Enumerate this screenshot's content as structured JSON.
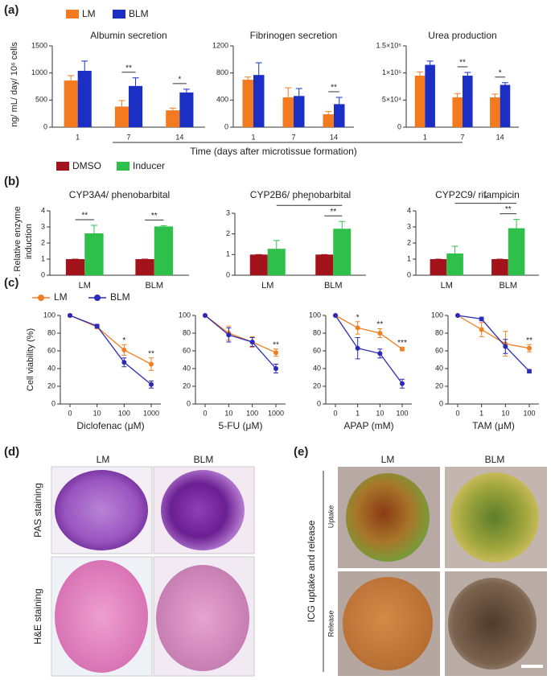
{
  "panels": {
    "a": {
      "label": "(a)",
      "ylabel": "ng/ mL/ day/ 10⁶ cells",
      "xlabel": "Time (days after microtissue formation)"
    },
    "b": {
      "label": "(b)",
      "ylabel": [
        ". Relative enzyme",
        "induction"
      ]
    },
    "c": {
      "label": "(c)",
      "ylabel": "Cell viability (%)"
    },
    "d": {
      "label": "(d)",
      "columns": [
        "LM",
        "BLM"
      ],
      "rows": [
        "PAS staining",
        "H&E staining"
      ]
    },
    "e": {
      "label": "(e)",
      "columns": [
        "LM",
        "BLM"
      ],
      "title": "ICG uptake and release",
      "rows": [
        "Uptake",
        "Release"
      ]
    }
  },
  "chart_data": [
    {
      "type": "bar",
      "title": "Albumin secretion",
      "categories": [
        "1",
        "7",
        "14"
      ],
      "series": [
        {
          "name": "LM",
          "color": "#f47a20",
          "values": [
            860,
            380,
            310
          ],
          "errors": [
            90,
            110,
            40
          ]
        },
        {
          "name": "BLM",
          "color": "#1c2fc4",
          "values": [
            1040,
            760,
            640
          ],
          "errors": [
            180,
            150,
            60
          ]
        }
      ],
      "ylim": [
        0,
        1500
      ],
      "yticks": [
        0,
        500,
        1000,
        1500
      ],
      "significance": [
        null,
        "**",
        "*"
      ]
    },
    {
      "type": "bar",
      "title": "Fibrinogen secretion",
      "categories": [
        "1",
        "7",
        "14"
      ],
      "series": [
        {
          "color": "#f47a20",
          "values": [
            700,
            440,
            190
          ],
          "errors": [
            40,
            140,
            40
          ]
        },
        {
          "color": "#1c2fc4",
          "values": [
            770,
            460,
            340
          ],
          "errors": [
            180,
            110,
            100
          ]
        }
      ],
      "ylim": [
        0,
        1200
      ],
      "yticks": [
        0,
        400,
        800,
        1200
      ],
      "significance": [
        null,
        null,
        "**"
      ]
    },
    {
      "type": "bar",
      "title": "Urea production",
      "categories": [
        "1",
        "7",
        "14"
      ],
      "series": [
        {
          "color": "#f47a20",
          "values": [
            95000,
            55000,
            55000
          ],
          "errors": [
            7000,
            7000,
            6000
          ]
        },
        {
          "color": "#1c2fc4",
          "values": [
            115000,
            95000,
            78000
          ],
          "errors": [
            7000,
            6000,
            4000
          ]
        }
      ],
      "ylim": [
        0,
        150000
      ],
      "yticks": [
        0,
        {
          "value": 50000,
          "label": "5×10⁴"
        },
        {
          "value": 100000,
          "label": "1×10⁵"
        },
        {
          "value": 150000,
          "label": "1.5×10⁵"
        }
      ],
      "significance": [
        null,
        "**",
        "*"
      ]
    },
    {
      "type": "bar",
      "title": "CYP3A4/ phenobarbital",
      "categories": [
        "LM",
        "BLM"
      ],
      "series": [
        {
          "name": "DMSO",
          "color": "#a3131b",
          "values": [
            1,
            1
          ],
          "errors": [
            0,
            0
          ]
        },
        {
          "name": "Inducer",
          "color": "#2ec04b",
          "values": [
            2.6,
            3.03
          ],
          "errors": [
            0.5,
            0.05
          ]
        }
      ],
      "ylim": [
        0,
        4
      ],
      "yticks": [
        0,
        1,
        2,
        3,
        4
      ],
      "significance": [
        "**",
        "**"
      ]
    },
    {
      "type": "bar",
      "title": "CYP2B6/ phenobarbital",
      "categories": [
        "LM",
        "BLM"
      ],
      "series": [
        {
          "color": "#a3131b",
          "values": [
            1,
            1
          ],
          "errors": [
            0,
            0
          ]
        },
        {
          "color": "#2ec04b",
          "values": [
            1.28,
            2.25
          ],
          "errors": [
            0.4,
            0.35
          ]
        }
      ],
      "ylim": [
        0,
        3
      ],
      "yticks": [
        0,
        1,
        2,
        3
      ],
      "significance": [
        null,
        "**"
      ],
      "between_label": "*"
    },
    {
      "type": "bar",
      "title": "CYP2C9/ rifampicin",
      "categories": [
        "LM",
        "BLM"
      ],
      "series": [
        {
          "color": "#a3131b",
          "values": [
            1,
            1
          ],
          "errors": [
            0,
            0
          ]
        },
        {
          "color": "#2ec04b",
          "values": [
            1.35,
            2.92
          ],
          "errors": [
            0.45,
            0.55
          ]
        }
      ],
      "ylim": [
        0,
        4
      ],
      "yticks": [
        0,
        1,
        2,
        3,
        4
      ],
      "significance": [
        null,
        "**"
      ],
      "between_label": "*"
    },
    {
      "type": "line",
      "xlabel": "Diclofenac (μM)",
      "categories": [
        "0",
        "10",
        "100",
        "1000"
      ],
      "series": [
        {
          "name": "LM",
          "color": "#f07f22",
          "values": [
            100,
            87,
            61,
            45
          ],
          "errors": [
            1,
            2,
            6,
            7
          ]
        },
        {
          "name": "BLM",
          "color": "#2a2ab8",
          "values": [
            100,
            88,
            47,
            22
          ],
          "errors": [
            1,
            2,
            5,
            4
          ]
        }
      ],
      "ylim": [
        0,
        100
      ],
      "yticks": [
        0,
        20,
        40,
        60,
        80,
        100
      ],
      "significance": [
        null,
        null,
        "*",
        "**"
      ]
    },
    {
      "type": "line",
      "xlabel": "5-FU (μM)",
      "categories": [
        "0",
        "10",
        "100",
        "1000"
      ],
      "series": [
        {
          "color": "#f07f22",
          "values": [
            100,
            80,
            70,
            58
          ],
          "errors": [
            0,
            8,
            6,
            4
          ]
        },
        {
          "color": "#2a2ab8",
          "values": [
            100,
            78,
            70,
            40
          ],
          "errors": [
            0,
            8,
            5,
            5
          ]
        }
      ],
      "ylim": [
        0,
        100
      ],
      "yticks": [
        0,
        20,
        40,
        60,
        80,
        100
      ],
      "significance": [
        null,
        null,
        null,
        "**"
      ]
    },
    {
      "type": "line",
      "xlabel": "APAP (mM)",
      "categories": [
        "0",
        "1",
        "10",
        "100"
      ],
      "series": [
        {
          "color": "#f07f22",
          "values": [
            100,
            86,
            80,
            62
          ],
          "errors": [
            0,
            7,
            5,
            2
          ]
        },
        {
          "color": "#2a2ab8",
          "values": [
            100,
            63,
            57,
            23
          ],
          "errors": [
            0,
            12,
            5,
            5
          ]
        }
      ],
      "ylim": [
        0,
        100
      ],
      "yticks": [
        0,
        20,
        40,
        60,
        80,
        100
      ],
      "significance": [
        null,
        "*",
        "**",
        "***"
      ]
    },
    {
      "type": "line",
      "xlabel": "TAM (μM)",
      "categories": [
        "0",
        "1",
        "10",
        "100"
      ],
      "series": [
        {
          "color": "#f07f22",
          "values": [
            100,
            84,
            68,
            63
          ],
          "errors": [
            0,
            8,
            14,
            4
          ]
        },
        {
          "color": "#2a2ab8",
          "values": [
            100,
            96,
            65,
            37
          ],
          "errors": [
            0,
            2,
            8,
            2
          ]
        }
      ],
      "ylim": [
        0,
        100
      ],
      "yticks": [
        0,
        20,
        40,
        60,
        80,
        100
      ],
      "significance": [
        null,
        null,
        null,
        "**"
      ]
    }
  ]
}
